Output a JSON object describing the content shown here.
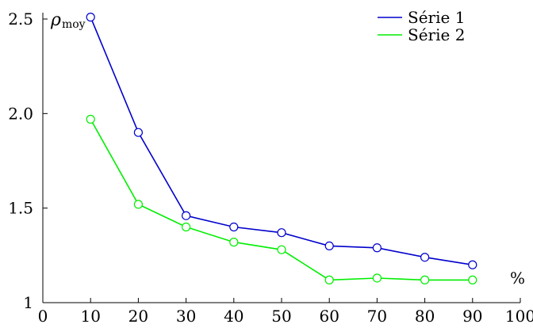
{
  "chart_data": {
    "type": "line",
    "x": [
      10,
      20,
      30,
      40,
      50,
      60,
      70,
      80,
      90
    ],
    "series": [
      {
        "name": "Série 1",
        "color": "#0000cc",
        "values": [
          2.51,
          1.9,
          1.46,
          1.4,
          1.37,
          1.3,
          1.29,
          1.24,
          1.2
        ]
      },
      {
        "name": "Série 2",
        "color": "#00ee00",
        "values": [
          1.97,
          1.52,
          1.4,
          1.32,
          1.28,
          1.12,
          1.13,
          1.12,
          1.12
        ]
      }
    ],
    "ylabel_main": "ρ",
    "ylabel_sub": "moy",
    "xunit": "%",
    "xlim": [
      0,
      100
    ],
    "ylim": [
      1,
      2.5
    ],
    "xticks": [
      "0",
      "10",
      "20",
      "30",
      "40",
      "50",
      "60",
      "70",
      "80",
      "90",
      "100"
    ],
    "yticks": [
      "1",
      "1.5",
      "2.0",
      "2.5"
    ],
    "ytick_values": [
      1,
      1.5,
      2.0,
      2.5
    ],
    "legend_position": "top-right",
    "grid": false
  }
}
